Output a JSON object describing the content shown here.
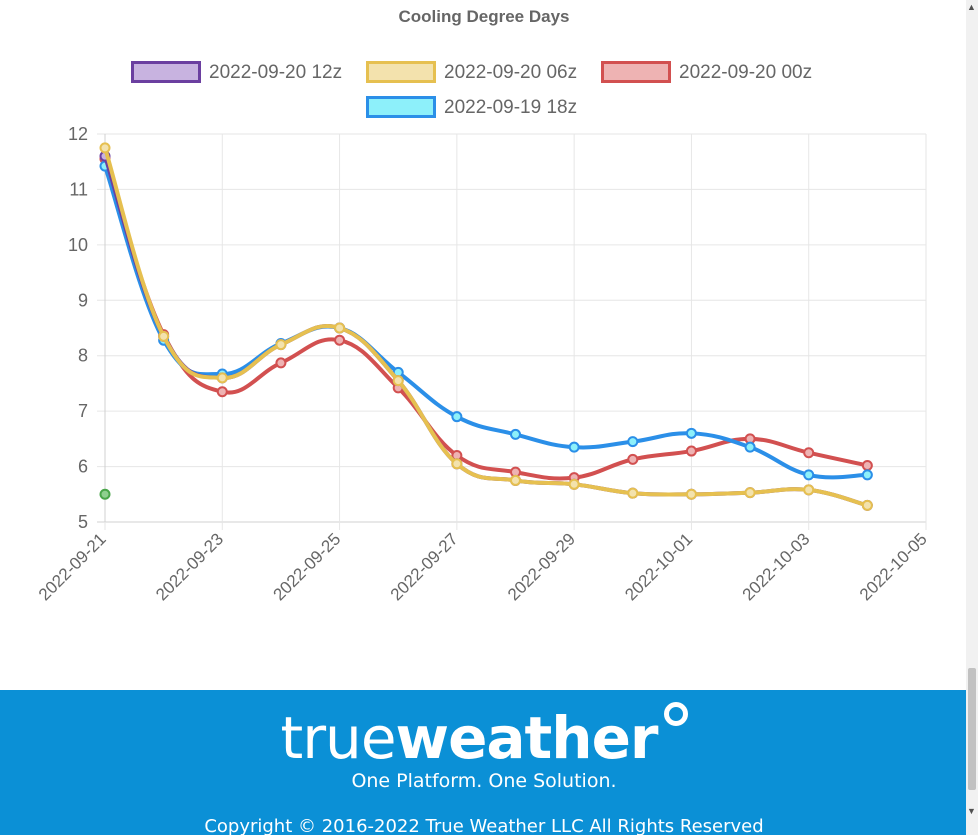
{
  "chart_data": {
    "type": "line",
    "title": "Cooling Degree Days",
    "x_ticks": [
      "2022-09-21",
      "2022-09-23",
      "2022-09-25",
      "2022-09-27",
      "2022-09-29",
      "2022-10-01",
      "2022-10-03",
      "2022-10-05"
    ],
    "x_range": [
      "2022-09-21",
      "2022-10-05"
    ],
    "ylim": [
      5,
      12
    ],
    "y_ticks": [
      5,
      6,
      7,
      8,
      9,
      10,
      11,
      12
    ],
    "grid": true,
    "legend_position": "top",
    "series": [
      {
        "name": "2022-09-20 12z",
        "stroke": "#6b3fa0",
        "fill": "#c8b3e0",
        "x": [
          "2022-09-21",
          "2022-09-22",
          "2022-09-23",
          "2022-09-24",
          "2022-09-25",
          "2022-09-26",
          "2022-09-27",
          "2022-09-28",
          "2022-09-29",
          "2022-09-30",
          "2022-10-01",
          "2022-10-02",
          "2022-10-03",
          "2022-10-04"
        ],
        "y": [
          11.6,
          8.35,
          7.6,
          8.2,
          8.5,
          7.55,
          6.05,
          5.75,
          5.68,
          5.52,
          5.5,
          5.53,
          5.58,
          5.3
        ]
      },
      {
        "name": "2022-09-20 06z",
        "stroke": "#e6c050",
        "fill": "#f3e2ad",
        "x": [
          "2022-09-21",
          "2022-09-22",
          "2022-09-23",
          "2022-09-24",
          "2022-09-25",
          "2022-09-26",
          "2022-09-27",
          "2022-09-28",
          "2022-09-29",
          "2022-09-30",
          "2022-10-01",
          "2022-10-02",
          "2022-10-03",
          "2022-10-04"
        ],
        "y": [
          11.75,
          8.35,
          7.6,
          8.2,
          8.5,
          7.55,
          6.05,
          5.75,
          5.68,
          5.52,
          5.5,
          5.53,
          5.58,
          5.3
        ]
      },
      {
        "name": "2022-09-20 00z",
        "stroke": "#d25050",
        "fill": "#eeb3b3",
        "x": [
          "2022-09-21",
          "2022-09-22",
          "2022-09-23",
          "2022-09-24",
          "2022-09-25",
          "2022-09-26",
          "2022-09-27",
          "2022-09-28",
          "2022-09-29",
          "2022-09-30",
          "2022-10-01",
          "2022-10-02",
          "2022-10-03",
          "2022-10-04"
        ],
        "y": [
          11.55,
          8.38,
          7.35,
          7.87,
          8.28,
          7.42,
          6.2,
          5.9,
          5.8,
          6.13,
          6.28,
          6.5,
          6.25,
          6.02
        ]
      },
      {
        "name": "2022-09-19 18z",
        "stroke": "#2b8fe8",
        "fill": "#8df0fa",
        "x": [
          "2022-09-21",
          "2022-09-22",
          "2022-09-23",
          "2022-09-24",
          "2022-09-25",
          "2022-09-26",
          "2022-09-27",
          "2022-09-28",
          "2022-09-29",
          "2022-09-30",
          "2022-10-01",
          "2022-10-02",
          "2022-10-03",
          "2022-10-04"
        ],
        "y": [
          11.42,
          8.28,
          7.67,
          8.22,
          8.5,
          7.7,
          6.9,
          6.58,
          6.35,
          6.45,
          6.6,
          6.35,
          5.85,
          5.85
        ]
      },
      {
        "stroke": "#4aa64a",
        "fill": "#8fd08f",
        "x": [
          "2022-09-21"
        ],
        "y": [
          5.5
        ]
      }
    ]
  },
  "footer": {
    "brand_part1": "true",
    "brand_part2": "weather",
    "tagline": "One Platform. One Solution.",
    "copyright": "Copyright © 2016-2022 True Weather LLC All Rights Reserved"
  },
  "scrollbar": {
    "up_arrow": "▲",
    "down_arrow": "▼"
  }
}
